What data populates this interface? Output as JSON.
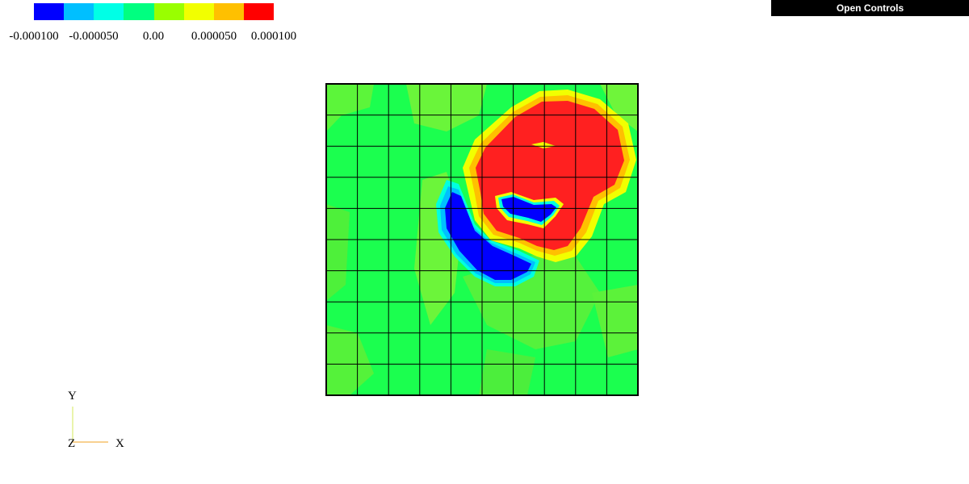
{
  "colorbar": {
    "colors": [
      "#0000ff",
      "#00bfff",
      "#00ffe6",
      "#00ff80",
      "#99ff00",
      "#f2ff00",
      "#ffc000",
      "#ff0000"
    ],
    "ticks": [
      "-0.000100",
      "-0.000050",
      "0.00",
      "0.000050",
      "0.000100"
    ]
  },
  "controls": {
    "open_label": "Open Controls"
  },
  "axes": {
    "x_label": "X",
    "y_label": "Y",
    "z_label": "Z"
  },
  "plot": {
    "grid_divisions": 10,
    "background_color": "#18ff50"
  }
}
